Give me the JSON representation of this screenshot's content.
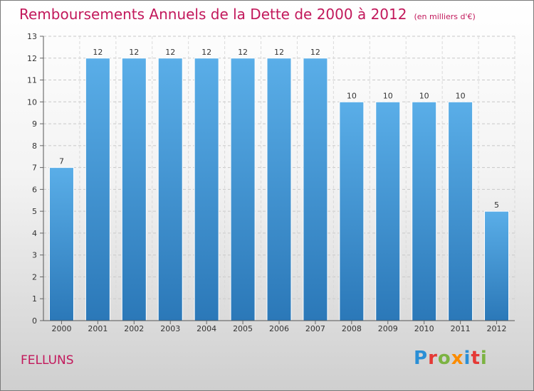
{
  "header": {
    "title": "Remboursements Annuels de la Dette de 2000 à 2012",
    "unit": "(en milliers d'€)"
  },
  "footer": {
    "commune": "FELLUNS",
    "logo_text": "Proxiti"
  },
  "colors": {
    "title": "#c2185b",
    "bar_top": "#5aaee8",
    "bar_bottom": "#2b78b8"
  },
  "chart_data": {
    "type": "bar",
    "categories": [
      "2000",
      "2001",
      "2002",
      "2003",
      "2004",
      "2005",
      "2006",
      "2007",
      "2008",
      "2009",
      "2010",
      "2011",
      "2012"
    ],
    "values": [
      7,
      12,
      12,
      12,
      12,
      12,
      12,
      12,
      10,
      10,
      10,
      10,
      5
    ],
    "title": "Remboursements Annuels de la Dette de 2000 à 2012",
    "xlabel": "",
    "ylabel": "",
    "ylim": [
      0,
      13
    ],
    "yticks": [
      0,
      1,
      2,
      3,
      4,
      5,
      6,
      7,
      8,
      9,
      10,
      11,
      12,
      13
    ],
    "grid": true,
    "data_labels": true
  }
}
